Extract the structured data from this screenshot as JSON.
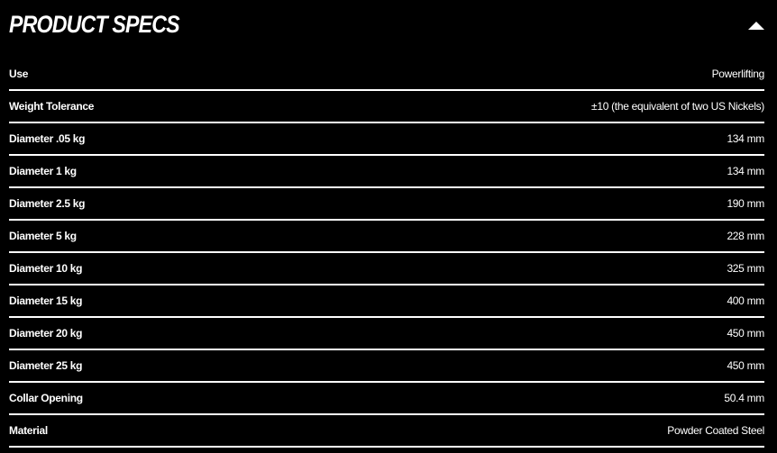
{
  "header": {
    "title": "PRODUCT SPECS",
    "toggle_icon": "triangle-up-icon"
  },
  "specs": [
    {
      "label": "Use",
      "value": "Powerlifting"
    },
    {
      "label": "Weight Tolerance",
      "value": "±10 (the equivalent of two US Nickels)"
    },
    {
      "label": "Diameter .05 kg",
      "value": "134 mm"
    },
    {
      "label": "Diameter 1 kg",
      "value": "134 mm"
    },
    {
      "label": "Diameter 2.5 kg",
      "value": "190 mm"
    },
    {
      "label": "Diameter 5 kg",
      "value": "228 mm"
    },
    {
      "label": "Diameter 10 kg",
      "value": "325 mm"
    },
    {
      "label": "Diameter 15 kg",
      "value": "400 mm"
    },
    {
      "label": "Diameter 20 kg",
      "value": "450 mm"
    },
    {
      "label": "Diameter 25 kg",
      "value": "450 mm"
    },
    {
      "label": "Collar Opening",
      "value": "50.4 mm"
    },
    {
      "label": "Material",
      "value": "Powder Coated Steel"
    }
  ]
}
